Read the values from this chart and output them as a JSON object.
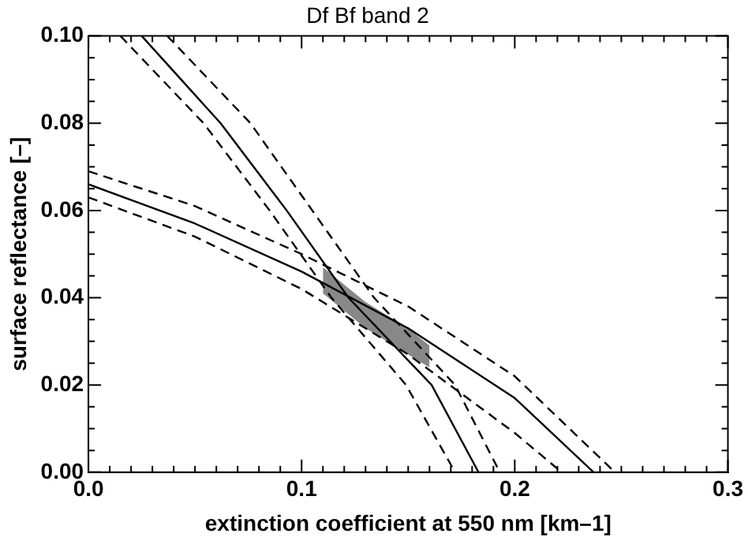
{
  "chart_data": {
    "type": "line",
    "title": "Df Bf band 2",
    "xlabel": "extinction coefficient at 550 nm [km–1]",
    "ylabel": "surface reflectance [–]",
    "xlim": [
      0,
      0.3
    ],
    "ylim": [
      0,
      0.1
    ],
    "xticks": [
      {
        "value": 0,
        "label": "0.0"
      },
      {
        "value": 0.01,
        "label": null
      },
      {
        "value": 0.02,
        "label": null
      },
      {
        "value": 0.03,
        "label": null
      },
      {
        "value": 0.04,
        "label": null
      },
      {
        "value": 0.05,
        "label": null
      },
      {
        "value": 0.06,
        "label": null
      },
      {
        "value": 0.07,
        "label": null
      },
      {
        "value": 0.08,
        "label": null
      },
      {
        "value": 0.09,
        "label": null
      },
      {
        "value": 0.1,
        "label": "0.1"
      },
      {
        "value": 0.11,
        "label": null
      },
      {
        "value": 0.12,
        "label": null
      },
      {
        "value": 0.13,
        "label": null
      },
      {
        "value": 0.14,
        "label": null
      },
      {
        "value": 0.15,
        "label": null
      },
      {
        "value": 0.16,
        "label": null
      },
      {
        "value": 0.17,
        "label": null
      },
      {
        "value": 0.18,
        "label": null
      },
      {
        "value": 0.19,
        "label": null
      },
      {
        "value": 0.2,
        "label": "0.2"
      },
      {
        "value": 0.21,
        "label": null
      },
      {
        "value": 0.22,
        "label": null
      },
      {
        "value": 0.23,
        "label": null
      },
      {
        "value": 0.24,
        "label": null
      },
      {
        "value": 0.25,
        "label": null
      },
      {
        "value": 0.26,
        "label": null
      },
      {
        "value": 0.27,
        "label": null
      },
      {
        "value": 0.28,
        "label": null
      },
      {
        "value": 0.29,
        "label": null
      },
      {
        "value": 0.3,
        "label": "0.3"
      }
    ],
    "yticks": [
      {
        "value": 0,
        "label": "0.00"
      },
      {
        "value": 0.005,
        "label": null
      },
      {
        "value": 0.01,
        "label": null
      },
      {
        "value": 0.015,
        "label": null
      },
      {
        "value": 0.02,
        "label": "0.02"
      },
      {
        "value": 0.025,
        "label": null
      },
      {
        "value": 0.03,
        "label": null
      },
      {
        "value": 0.035,
        "label": null
      },
      {
        "value": 0.04,
        "label": "0.04"
      },
      {
        "value": 0.045,
        "label": null
      },
      {
        "value": 0.05,
        "label": null
      },
      {
        "value": 0.055,
        "label": null
      },
      {
        "value": 0.06,
        "label": "0.06"
      },
      {
        "value": 0.065,
        "label": null
      },
      {
        "value": 0.07,
        "label": null
      },
      {
        "value": 0.075,
        "label": null
      },
      {
        "value": 0.08,
        "label": "0.08"
      },
      {
        "value": 0.085,
        "label": null
      },
      {
        "value": 0.09,
        "label": null
      },
      {
        "value": 0.095,
        "label": null
      },
      {
        "value": 0.1,
        "label": "0.10"
      }
    ],
    "marker": "none",
    "series": [
      {
        "color": "#000000",
        "line_style": "solid",
        "x": [
          0.025,
          0.062,
          0.093,
          0.122,
          0.161,
          0.183
        ],
        "values": [
          0.1,
          0.08,
          0.06,
          0.04,
          0.02,
          0
        ]
      },
      {
        "color": "#000000",
        "line_style": "dashed",
        "x": [
          0.037,
          0.076,
          0.105,
          0.134,
          0.172,
          0.193
        ],
        "values": [
          0.1,
          0.08,
          0.06,
          0.04,
          0.02,
          0
        ]
      },
      {
        "color": "#000000",
        "line_style": "dashed",
        "x": [
          0.015,
          0.054,
          0.085,
          0.114,
          0.149,
          0.172
        ],
        "values": [
          0.1,
          0.08,
          0.06,
          0.04,
          0.02,
          0
        ]
      },
      {
        "color": "#000000",
        "line_style": "solid",
        "x": [
          0,
          0.05,
          0.1,
          0.15,
          0.2,
          0.237
        ],
        "values": [
          0.066,
          0.057,
          0.046,
          0.033,
          0.017,
          0
        ]
      },
      {
        "color": "#000000",
        "line_style": "dashed",
        "x": [
          0,
          0.05,
          0.1,
          0.15,
          0.2,
          0.247
        ],
        "values": [
          0.069,
          0.061,
          0.05,
          0.038,
          0.022,
          0
        ]
      },
      {
        "color": "#000000",
        "line_style": "dashed",
        "x": [
          0,
          0.05,
          0.1,
          0.15,
          0.2,
          0.222
        ],
        "values": [
          0.063,
          0.054,
          0.042,
          0.027,
          0.009,
          0
        ]
      },
      {
        "color": "#888888",
        "x": [
          0.11,
          0.12,
          0.13,
          0.14,
          0.15,
          0.16
        ],
        "values": [
          null,
          null,
          null,
          null,
          null,
          null
        ],
        "lower": [
          0.041,
          0.037,
          0.033,
          0.03,
          0.027,
          0.024
        ],
        "upper": [
          0.047,
          0.043,
          0.039,
          0.036,
          0.033,
          0.029
        ]
      }
    ]
  }
}
